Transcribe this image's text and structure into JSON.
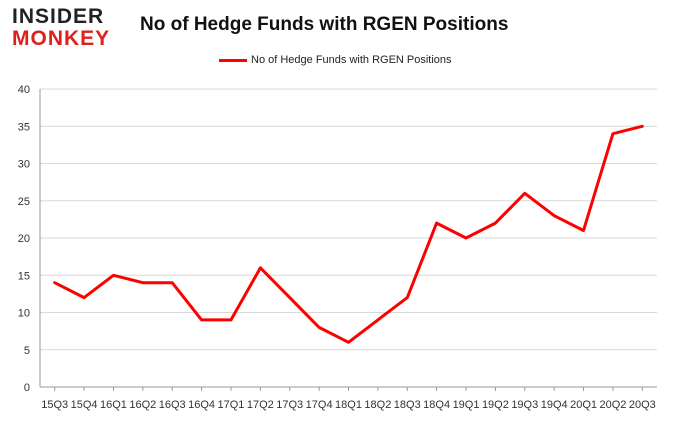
{
  "logo": {
    "line1": "INSIDER",
    "line2": "MONKEY"
  },
  "chart_data": {
    "type": "line",
    "title": "No of Hedge Funds with RGEN Positions",
    "xlabel": "",
    "ylabel": "",
    "categories": [
      "15Q3",
      "15Q4",
      "16Q1",
      "16Q2",
      "16Q3",
      "16Q4",
      "17Q1",
      "17Q2",
      "17Q3",
      "17Q4",
      "18Q1",
      "18Q2",
      "18Q3",
      "18Q4",
      "19Q1",
      "19Q2",
      "19Q3",
      "19Q4",
      "20Q1",
      "20Q2",
      "20Q3"
    ],
    "series": [
      {
        "name": "No of Hedge Funds with RGEN Positions",
        "values": [
          14,
          12,
          15,
          14,
          14,
          9,
          9,
          16,
          12,
          8,
          6,
          9,
          12,
          22,
          20,
          22,
          26,
          23,
          21,
          34,
          35
        ],
        "color": "#ff0000"
      }
    ],
    "ylim": [
      0,
      40
    ],
    "yticks": [
      0,
      5,
      10,
      15,
      20,
      25,
      30,
      35,
      40
    ],
    "grid": true,
    "legend_position": "top-center"
  }
}
